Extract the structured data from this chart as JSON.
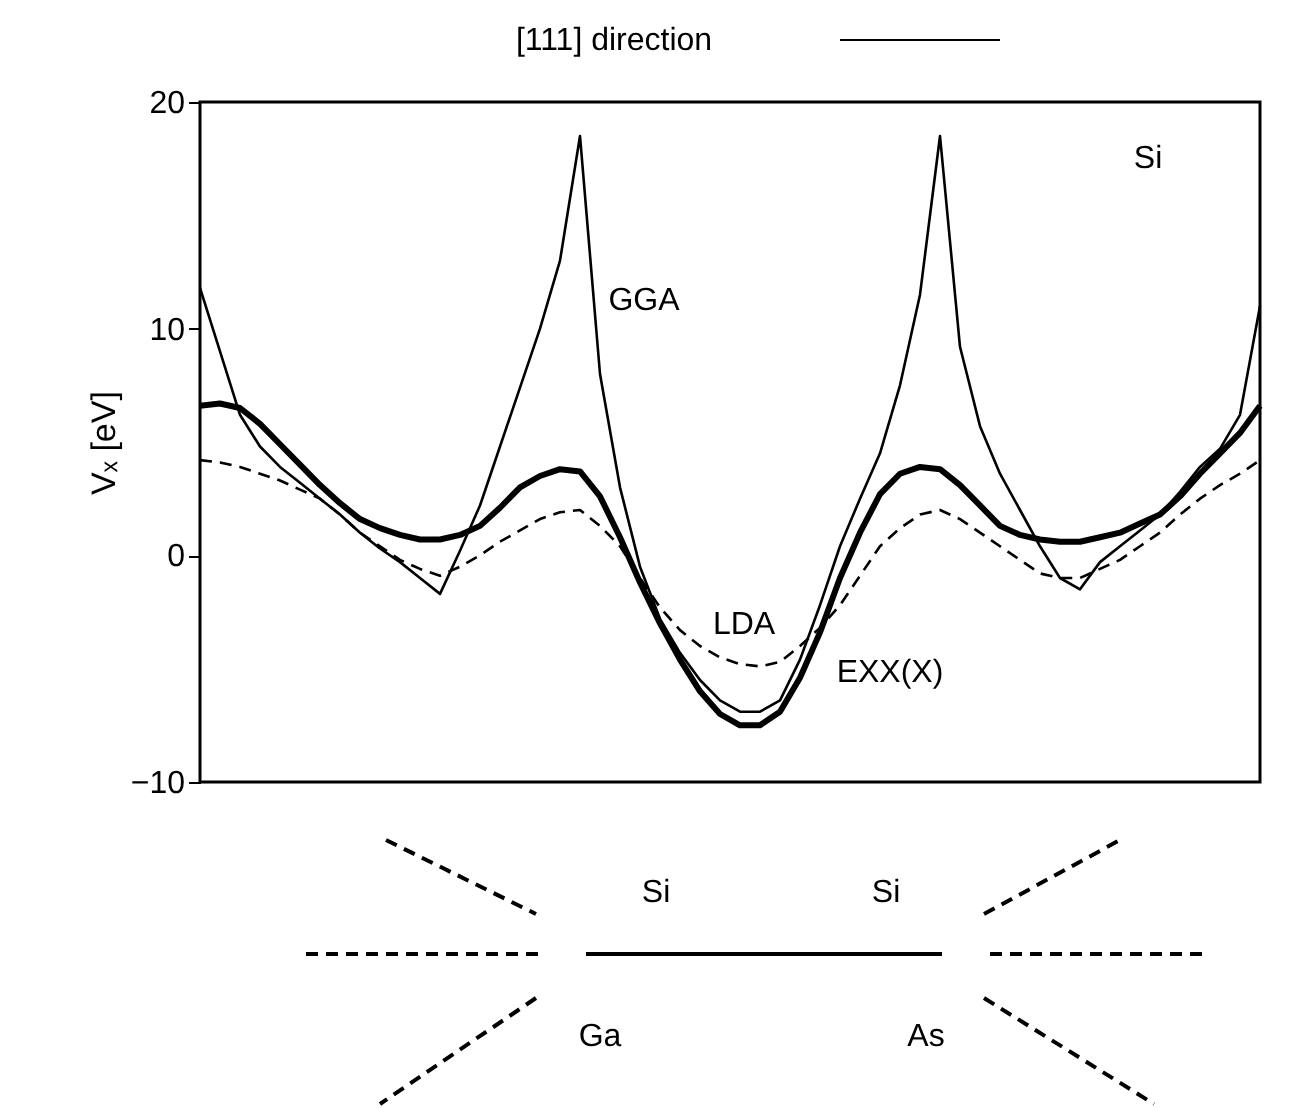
{
  "chart_data": {
    "type": "line",
    "title": "[111] direction",
    "ylabel": "Vₓ [eV]",
    "categories": [
      null,
      null,
      null,
      null,
      null,
      null,
      null,
      null,
      null,
      null,
      null,
      null,
      null,
      null,
      null,
      null,
      null,
      null,
      null,
      null,
      null,
      null,
      null,
      null,
      null,
      null,
      null,
      null,
      null,
      null,
      null,
      null,
      null,
      null,
      null,
      null,
      null,
      null,
      null,
      null,
      null,
      null,
      null,
      null,
      null,
      null,
      null,
      null,
      null,
      null,
      null,
      null,
      null,
      null
    ],
    "ylim": [
      -10,
      20
    ],
    "yticks": [
      -10,
      0,
      10,
      20
    ],
    "grid": false,
    "marker": "none",
    "tick_labels": "y",
    "series": [
      {
        "name": "GGA",
        "color": "#000000",
        "line_style": "solid",
        "values": [
          11.8,
          9.0,
          6.2,
          4.8,
          3.9,
          3.2,
          2.5,
          1.8,
          1.0,
          0.3,
          -0.3,
          -1.0,
          -1.7,
          0.2,
          2.2,
          4.8,
          7.4,
          10.0,
          13.0,
          18.5,
          8.0,
          3.0,
          -0.5,
          -2.8,
          -4.3,
          -5.5,
          -6.4,
          -6.9,
          -6.9,
          -6.4,
          -4.6,
          -2.2,
          0.4,
          2.5,
          4.5,
          7.5,
          11.5,
          18.5,
          9.2,
          5.7,
          3.6,
          2.0,
          0.4,
          -1.0,
          -1.5,
          -0.3,
          0.4,
          1.1,
          1.8,
          2.8,
          3.9,
          4.7,
          6.2,
          11.0
        ]
      },
      {
        "name": "EXX(X)",
        "color": "#000000",
        "line_style": "solid",
        "values": [
          6.6,
          6.7,
          6.5,
          5.8,
          4.9,
          4.0,
          3.1,
          2.3,
          1.6,
          1.2,
          0.9,
          0.7,
          0.7,
          0.9,
          1.3,
          2.1,
          3.0,
          3.5,
          3.8,
          3.7,
          2.6,
          0.8,
          -1.2,
          -3.0,
          -4.6,
          -6.0,
          -7.0,
          -7.5,
          -7.5,
          -6.9,
          -5.4,
          -3.4,
          -1.0,
          1.0,
          2.7,
          3.6,
          3.9,
          3.8,
          3.1,
          2.2,
          1.3,
          0.9,
          0.7,
          0.6,
          0.6,
          0.8,
          1.0,
          1.4,
          1.8,
          2.6,
          3.6,
          4.5,
          5.4,
          6.6
        ]
      },
      {
        "name": "LDA",
        "color": "#000000",
        "line_style": "dashed",
        "values": [
          4.2,
          4.1,
          3.9,
          3.6,
          3.3,
          2.9,
          2.5,
          1.8,
          1.0,
          0.4,
          -0.2,
          -0.6,
          -0.9,
          -0.5,
          0.0,
          0.6,
          1.1,
          1.6,
          1.9,
          2.0,
          1.3,
          0.4,
          -1.0,
          -2.3,
          -3.3,
          -4.0,
          -4.5,
          -4.8,
          -4.9,
          -4.7,
          -4.0,
          -3.2,
          -2.2,
          -0.9,
          0.4,
          1.2,
          1.8,
          2.0,
          1.6,
          1.0,
          0.4,
          -0.2,
          -0.8,
          -1.0,
          -1.0,
          -0.6,
          -0.2,
          0.4,
          1.0,
          1.8,
          2.5,
          3.1,
          3.6,
          4.2
        ]
      }
    ],
    "annotations": [
      "Si",
      "Si",
      "Si",
      "Ga",
      "As"
    ]
  }
}
